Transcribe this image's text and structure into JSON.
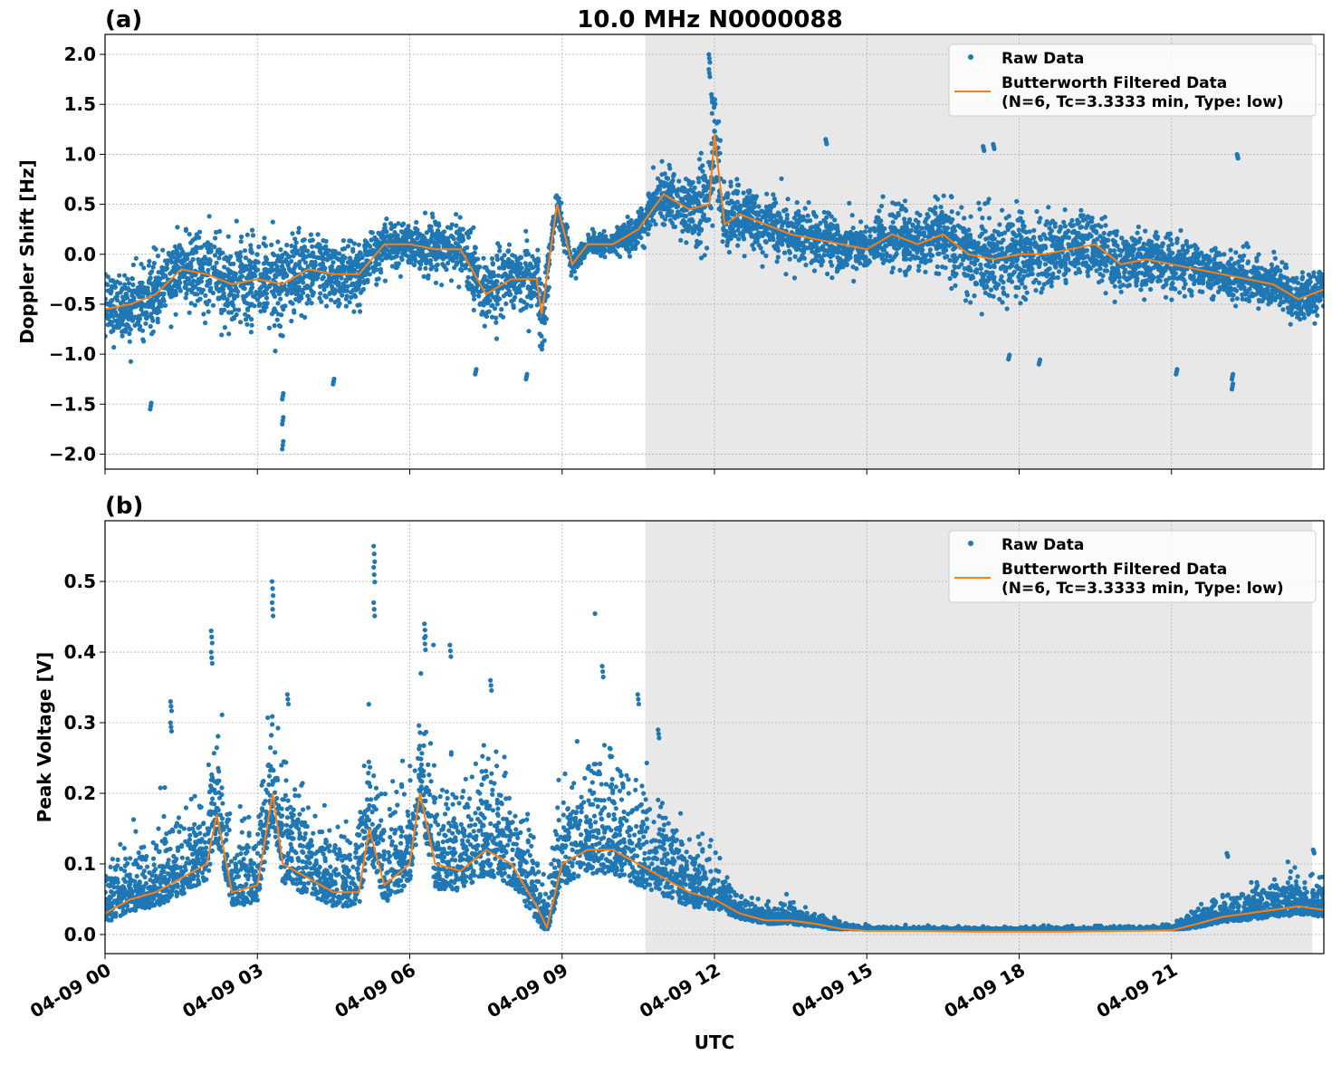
{
  "colors": {
    "raw": "#1f77b4",
    "filtered": "#ff7f0e",
    "shade": "#e8e8e8",
    "grid": "#b0b0b0"
  },
  "chart_data": [
    {
      "type": "scatter+line",
      "panel_label": "(a)",
      "title": "10.0 MHz N0000088",
      "ylabel": "Doppler Shift [Hz]",
      "xlabel": "",
      "xlim_hours": [
        0,
        24
      ],
      "ylim": [
        -2.15,
        2.2
      ],
      "yticks": [
        2.0,
        1.5,
        1.0,
        0.5,
        0.0,
        -0.5,
        -1.0,
        -1.5,
        -2.0
      ],
      "ytick_labels": [
        "2.0",
        "1.5",
        "1.0",
        "0.5",
        "0.0",
        "−0.5",
        "−1.0",
        "−1.5",
        "−2.0"
      ],
      "grid": true,
      "legend_placement": "top-right",
      "legend": [
        "Raw Data",
        "Butterworth Filtered Data",
        "(N=6, Tc=3.3333 min, Type: low)"
      ],
      "shaded_span_hours": [
        10.64,
        23.77
      ],
      "filtered": {
        "x": [
          0,
          0.5,
          1,
          1.5,
          2,
          2.5,
          3,
          3.5,
          4,
          4.5,
          5,
          5.5,
          6,
          6.5,
          7,
          7.5,
          8,
          8.5,
          8.6,
          8.9,
          9.2,
          9.5,
          10,
          10.5,
          11,
          11.5,
          11.9,
          12,
          12.2,
          12.5,
          13,
          13.5,
          14,
          14.5,
          15,
          15.5,
          16,
          16.5,
          17,
          17.5,
          18,
          18.5,
          19,
          19.5,
          20,
          20.5,
          21,
          21.5,
          22,
          22.5,
          23,
          23.5,
          24
        ],
        "y": [
          -0.55,
          -0.5,
          -0.4,
          -0.15,
          -0.2,
          -0.3,
          -0.25,
          -0.3,
          -0.15,
          -0.2,
          -0.2,
          0.1,
          0.1,
          0.05,
          0.05,
          -0.4,
          -0.25,
          -0.25,
          -0.6,
          0.5,
          -0.1,
          0.1,
          0.1,
          0.25,
          0.6,
          0.45,
          0.5,
          1.2,
          0.3,
          0.4,
          0.3,
          0.2,
          0.15,
          0.1,
          0.05,
          0.2,
          0.1,
          0.2,
          0.0,
          -0.05,
          0.0,
          0.0,
          0.05,
          0.1,
          -0.1,
          -0.05,
          -0.1,
          -0.15,
          -0.2,
          -0.25,
          -0.3,
          -0.45,
          -0.35
        ]
      },
      "raw_spread": [
        0.3,
        0.3,
        0.3,
        0.3,
        0.35,
        0.35,
        0.4,
        0.45,
        0.3,
        0.3,
        0.25,
        0.2,
        0.2,
        0.25,
        0.3,
        0.35,
        0.25,
        0.3,
        0.35,
        0.15,
        0.1,
        0.1,
        0.1,
        0.15,
        0.25,
        0.3,
        0.45,
        0.5,
        0.3,
        0.3,
        0.25,
        0.25,
        0.25,
        0.25,
        0.2,
        0.3,
        0.25,
        0.3,
        0.35,
        0.4,
        0.35,
        0.3,
        0.3,
        0.3,
        0.25,
        0.25,
        0.25,
        0.2,
        0.2,
        0.25,
        0.2,
        0.2,
        0.2
      ],
      "raw_outliers": [
        [
          0.9,
          -1.55
        ],
        [
          3.5,
          -1.95
        ],
        [
          3.5,
          -1.7
        ],
        [
          3.5,
          -1.45
        ],
        [
          4.5,
          -1.3
        ],
        [
          7.3,
          -1.2
        ],
        [
          8.3,
          -1.25
        ],
        [
          11.9,
          2.0
        ],
        [
          11.9,
          1.85
        ],
        [
          11.95,
          1.6
        ],
        [
          14.2,
          1.15
        ],
        [
          17.5,
          1.1
        ],
        [
          17.3,
          1.08
        ],
        [
          17.8,
          -1.05
        ],
        [
          18.4,
          -1.1
        ],
        [
          21.1,
          -1.2
        ],
        [
          22.2,
          -1.35
        ],
        [
          22.2,
          -1.25
        ],
        [
          22.3,
          1.0
        ]
      ]
    },
    {
      "type": "scatter+line",
      "panel_label": "(b)",
      "title": "",
      "ylabel": "Peak Voltage [V]",
      "xlabel": "UTC",
      "xlim_hours": [
        0,
        24
      ],
      "ylim": [
        -0.027,
        0.586
      ],
      "yticks": [
        0.0,
        0.1,
        0.2,
        0.3,
        0.4,
        0.5
      ],
      "ytick_labels": [
        "0.0",
        "0.1",
        "0.2",
        "0.3",
        "0.4",
        "0.5"
      ],
      "xticks_hours": [
        0,
        3,
        6,
        9,
        12,
        15,
        18,
        21
      ],
      "xtick_labels": [
        "04-09 00",
        "04-09 03",
        "04-09 06",
        "04-09 09",
        "04-09 12",
        "04-09 15",
        "04-09 18",
        "04-09 21"
      ],
      "grid": true,
      "legend_placement": "top-right",
      "legend": [
        "Raw Data",
        "Butterworth Filtered Data",
        "(N=6, Tc=3.3333 min, Type: low)"
      ],
      "shaded_span_hours": [
        10.64,
        23.77
      ],
      "filtered": {
        "x": [
          0,
          0.5,
          1,
          1.5,
          2,
          2.2,
          2.5,
          3,
          3.3,
          3.5,
          4,
          4.5,
          5,
          5.2,
          5.5,
          6,
          6.2,
          6.5,
          7,
          7.5,
          8,
          8.5,
          8.7,
          9,
          9.5,
          10,
          10.5,
          11,
          11.5,
          12,
          12.5,
          13,
          13.5,
          14,
          14.5,
          15,
          16,
          17,
          18,
          19,
          20,
          21,
          21.5,
          22,
          22.5,
          23,
          23.5,
          24
        ],
        "y": [
          0.03,
          0.05,
          0.06,
          0.08,
          0.1,
          0.17,
          0.06,
          0.07,
          0.2,
          0.1,
          0.08,
          0.06,
          0.06,
          0.15,
          0.07,
          0.1,
          0.2,
          0.1,
          0.09,
          0.12,
          0.1,
          0.04,
          0.01,
          0.1,
          0.12,
          0.12,
          0.1,
          0.08,
          0.06,
          0.05,
          0.03,
          0.02,
          0.02,
          0.015,
          0.008,
          0.005,
          0.005,
          0.004,
          0.004,
          0.004,
          0.005,
          0.006,
          0.015,
          0.025,
          0.03,
          0.035,
          0.04,
          0.035
        ]
      },
      "raw_spread": [
        0.03,
        0.035,
        0.04,
        0.05,
        0.05,
        0.07,
        0.04,
        0.05,
        0.08,
        0.06,
        0.05,
        0.04,
        0.045,
        0.07,
        0.05,
        0.06,
        0.08,
        0.07,
        0.06,
        0.07,
        0.06,
        0.04,
        0.02,
        0.06,
        0.07,
        0.07,
        0.06,
        0.05,
        0.04,
        0.03,
        0.015,
        0.01,
        0.01,
        0.008,
        0.004,
        0.003,
        0.003,
        0.003,
        0.003,
        0.003,
        0.003,
        0.004,
        0.01,
        0.015,
        0.02,
        0.02,
        0.025,
        0.02
      ],
      "raw_outliers": [
        [
          1.3,
          0.33
        ],
        [
          1.3,
          0.3
        ],
        [
          2.1,
          0.43
        ],
        [
          2.1,
          0.4
        ],
        [
          3.3,
          0.5
        ],
        [
          3.3,
          0.47
        ],
        [
          3.6,
          0.34
        ],
        [
          5.3,
          0.55
        ],
        [
          5.3,
          0.52
        ],
        [
          5.3,
          0.47
        ],
        [
          6.3,
          0.44
        ],
        [
          6.3,
          0.42
        ],
        [
          6.8,
          0.41
        ],
        [
          7.6,
          0.36
        ],
        [
          9.8,
          0.38
        ],
        [
          10.5,
          0.34
        ],
        [
          10.9,
          0.29
        ],
        [
          22.1,
          0.115
        ],
        [
          23.8,
          0.12
        ]
      ]
    }
  ]
}
